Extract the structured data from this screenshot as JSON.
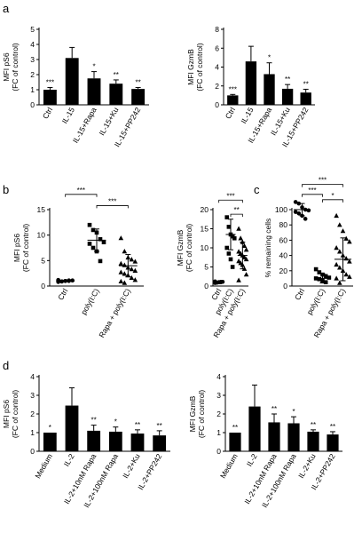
{
  "panel_labels": [
    "a",
    "b",
    "c",
    "d"
  ],
  "colors": {
    "bar": "#000000",
    "axis": "#000000",
    "background": "#ffffff"
  },
  "chart_data": [
    {
      "id": "a-pS6",
      "panel": "a",
      "type": "bar",
      "ylabel": [
        "MFI pS6",
        "(FC of control)"
      ],
      "ylim": [
        0,
        5
      ],
      "yticks": [
        0,
        1,
        2,
        3,
        4,
        5
      ],
      "categories": [
        "Ctrl",
        "IL-15",
        "IL-15+Rapa",
        "IL-15+Ku",
        "IL-15+PP242"
      ],
      "values": [
        1.0,
        3.1,
        1.75,
        1.4,
        1.05
      ],
      "errors": [
        0.15,
        0.7,
        0.45,
        0.25,
        0.1
      ],
      "significance": [
        "***",
        "",
        "*",
        "**",
        "**"
      ]
    },
    {
      "id": "a-GzmB",
      "panel": "a",
      "type": "bar",
      "ylabel": [
        "MFI GzmB",
        "(FC of control)"
      ],
      "ylim": [
        0,
        8
      ],
      "yticks": [
        0,
        2,
        4,
        6,
        8
      ],
      "categories": [
        "Ctrl",
        "IL-15",
        "IL-15+Rapa",
        "IL-15+Ku",
        "IL-15+PP242"
      ],
      "values": [
        1.0,
        4.6,
        3.25,
        1.7,
        1.3
      ],
      "errors": [
        0.1,
        1.6,
        1.2,
        0.45,
        0.35
      ],
      "significance": [
        "***",
        "",
        "*",
        "**",
        "**"
      ]
    },
    {
      "id": "b-pS6",
      "panel": "b",
      "type": "scatter",
      "ylabel": [
        "MFI pS6",
        "(FC of control)"
      ],
      "ylim": [
        0,
        15
      ],
      "yticks": [
        0,
        5,
        10,
        15
      ],
      "categories": [
        "Ctrl",
        "poly(I:C)",
        "Rapa + poly(I:C)"
      ],
      "series": [
        {
          "marker": "circle",
          "values": [
            0.8,
            0.9,
            1.0,
            1.0,
            1.1,
            1.2,
            0.9,
            1.0,
            1.1
          ],
          "mean": 1.0,
          "sd": 0.1
        },
        {
          "marker": "square",
          "values": [
            12.0,
            11.0,
            10.5,
            9.2,
            8.6,
            8.3,
            7.5,
            6.8,
            4.9
          ],
          "mean": 9.0,
          "sd": 2.2
        },
        {
          "marker": "triangle",
          "values": [
            9.4,
            6.8,
            5.6,
            5.2,
            4.8,
            4.4,
            4.1,
            3.6,
            3.3,
            3.0,
            2.7,
            2.4,
            2.1,
            1.6,
            1.2,
            0.9,
            0.6
          ],
          "mean": 4.0,
          "sd": 2.2
        }
      ],
      "brackets": [
        {
          "from": 0,
          "to": 1,
          "level": 18.0,
          "label": "***"
        },
        {
          "from": 1,
          "to": 2,
          "level": 15.8,
          "label": "***"
        }
      ]
    },
    {
      "id": "b-GzmB",
      "panel": "b",
      "type": "scatter",
      "ylabel": [
        "MFI GzmB",
        "(FC of control)"
      ],
      "ylim": [
        0,
        20
      ],
      "yticks": [
        0,
        5,
        10,
        15,
        20
      ],
      "categories": [
        "Ctrl",
        "poly(I:C)",
        "Rapa + poly(I:C)"
      ],
      "series": [
        {
          "marker": "circle",
          "values": [
            0.8,
            0.9,
            1.0,
            1.0,
            1.1,
            1.2,
            0.9,
            1.0,
            1.1
          ],
          "mean": 1.0,
          "sd": 0.1
        },
        {
          "marker": "square",
          "values": [
            18.0,
            15.5,
            13.5,
            13.0,
            12.5,
            10.0,
            8.5,
            7.0,
            5.0
          ],
          "mean": 13.5,
          "sd": 4.0
        },
        {
          "marker": "triangle",
          "values": [
            15.0,
            12.5,
            11.5,
            10.5,
            9.5,
            9.0,
            8.5,
            8.0,
            7.5,
            7.0,
            6.5,
            6.0,
            5.5,
            4.5,
            3.0,
            1.5
          ],
          "mean": 8.0,
          "sd": 3.5
        }
      ],
      "brackets": [
        {
          "from": 0,
          "to": 2,
          "level": 22.5,
          "label": "***"
        },
        {
          "from": 1,
          "to": 2,
          "level": 18.8,
          "label": "**"
        }
      ]
    },
    {
      "id": "c-remaining",
      "panel": "c",
      "type": "scatter",
      "ylabel": [
        "% remaining cells"
      ],
      "ylim": [
        0,
        100
      ],
      "yticks": [
        0,
        20,
        40,
        60,
        80,
        100
      ],
      "categories": [
        "Ctrl",
        "poly(I:C)",
        "Rapa + poly(I:C)"
      ],
      "series": [
        {
          "marker": "circle",
          "values": [
            110,
            108,
            103,
            100,
            99,
            97,
            95,
            92,
            88
          ],
          "mean": 100,
          "sd": 8
        },
        {
          "marker": "square",
          "values": [
            22,
            18,
            15,
            13,
            11,
            10,
            9,
            7,
            5
          ],
          "mean": 10,
          "sd": 6
        },
        {
          "marker": "triangle",
          "values": [
            92,
            80,
            72,
            62,
            58,
            50,
            45,
            40,
            36,
            32,
            28,
            24,
            20,
            15,
            12,
            10,
            4
          ],
          "mean": 35,
          "sd": 28
        }
      ],
      "brackets": [
        {
          "from": 0,
          "to": 2,
          "level": 133,
          "label": "***"
        },
        {
          "from": 0,
          "to": 1,
          "level": 120,
          "label": "***"
        },
        {
          "from": 1,
          "to": 2,
          "level": 113,
          "label": "*"
        }
      ]
    },
    {
      "id": "d-pS6",
      "panel": "d",
      "type": "bar",
      "ylabel": [
        "MFI pS6",
        "(FC of control)"
      ],
      "ylim": [
        0,
        4
      ],
      "yticks": [
        0,
        1,
        2,
        3,
        4
      ],
      "categories": [
        "Medium",
        "IL-2",
        "IL-2+10nM Rapa",
        "IL-2+100nM Rapa",
        "IL-2+Ku",
        "IL-2+PP242"
      ],
      "values": [
        1.0,
        2.45,
        1.1,
        1.05,
        0.95,
        0.85
      ],
      "errors": [
        0.0,
        0.95,
        0.3,
        0.25,
        0.2,
        0.25
      ],
      "significance": [
        "*",
        "",
        "**",
        "*",
        "**",
        "**"
      ]
    },
    {
      "id": "d-GzmB",
      "panel": "d",
      "type": "bar",
      "ylabel": [
        "MFI GzmB",
        "(FC of control)"
      ],
      "ylim": [
        0,
        4
      ],
      "yticks": [
        0,
        1,
        2,
        3,
        4
      ],
      "categories": [
        "Medium",
        "IL-2",
        "IL-2+10nM Rapa",
        "IL-2+100nM Rapa",
        "IL-2+Ku",
        "IL-2+PP242"
      ],
      "values": [
        1.0,
        2.4,
        1.55,
        1.5,
        1.05,
        0.9
      ],
      "errors": [
        0.0,
        1.15,
        0.45,
        0.35,
        0.1,
        0.15
      ],
      "significance": [
        "**",
        "",
        "**",
        "*",
        "**",
        "**"
      ]
    }
  ]
}
